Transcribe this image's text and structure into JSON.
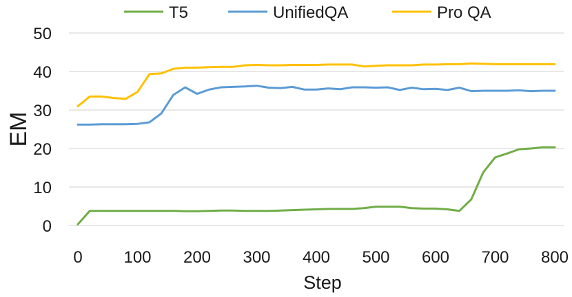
{
  "chart_data": {
    "type": "line",
    "title": "",
    "xlabel": "Step",
    "ylabel": "EM",
    "xlim": [
      0,
      800
    ],
    "ylim": [
      0,
      50
    ],
    "xticks": [
      0,
      100,
      200,
      300,
      400,
      500,
      600,
      700,
      800
    ],
    "yticks": [
      0,
      10,
      20,
      30,
      40,
      50
    ],
    "grid": "horizontal",
    "legend": "top",
    "x": [
      0,
      20,
      40,
      60,
      80,
      100,
      120,
      140,
      160,
      180,
      200,
      220,
      240,
      260,
      280,
      300,
      320,
      340,
      360,
      380,
      400,
      420,
      440,
      460,
      480,
      500,
      520,
      540,
      560,
      580,
      600,
      620,
      640,
      660,
      680,
      700,
      720,
      740,
      760,
      780,
      800
    ],
    "series": [
      {
        "name": "T5",
        "color": "#70ad47",
        "values": [
          0.3,
          3.8,
          3.8,
          3.8,
          3.8,
          3.8,
          3.8,
          3.8,
          3.8,
          3.7,
          3.7,
          3.8,
          3.9,
          3.9,
          3.8,
          3.8,
          3.8,
          3.9,
          4.0,
          4.1,
          4.2,
          4.3,
          4.3,
          4.3,
          4.5,
          4.9,
          4.9,
          4.9,
          4.5,
          4.4,
          4.4,
          4.2,
          3.8,
          6.8,
          13.8,
          17.7,
          18.7,
          19.8,
          20.0,
          20.3,
          20.3
        ]
      },
      {
        "name": "UnifiedQA",
        "color": "#5b9bd5",
        "values": [
          26.2,
          26.2,
          26.3,
          26.3,
          26.3,
          26.4,
          26.8,
          29.1,
          33.9,
          35.9,
          34.2,
          35.3,
          35.9,
          36.0,
          36.1,
          36.3,
          35.8,
          35.7,
          36.0,
          35.3,
          35.3,
          35.6,
          35.4,
          35.9,
          35.9,
          35.8,
          35.9,
          35.2,
          35.8,
          35.4,
          35.5,
          35.2,
          35.8,
          34.9,
          35.0,
          35.0,
          35.0,
          35.1,
          34.9,
          35.0,
          35.0
        ]
      },
      {
        "name": "Pro QA",
        "color": "#ffc000",
        "values": [
          31.0,
          33.5,
          33.5,
          33.1,
          32.9,
          34.7,
          39.3,
          39.5,
          40.7,
          41.0,
          41.0,
          41.1,
          41.2,
          41.2,
          41.6,
          41.7,
          41.6,
          41.6,
          41.7,
          41.7,
          41.7,
          41.8,
          41.8,
          41.8,
          41.3,
          41.5,
          41.6,
          41.6,
          41.6,
          41.8,
          41.8,
          41.9,
          41.9,
          42.1,
          42.0,
          41.9,
          41.9,
          41.9,
          41.9,
          41.9,
          41.9
        ]
      }
    ]
  }
}
